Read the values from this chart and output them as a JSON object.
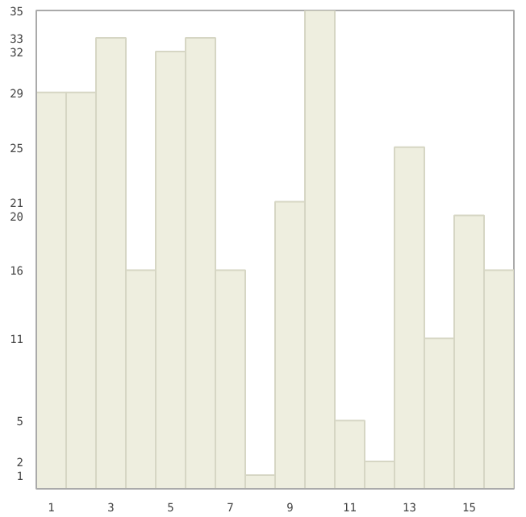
{
  "chart_data": {
    "type": "bar",
    "x": [
      1,
      2,
      3,
      4,
      5,
      6,
      7,
      8,
      9,
      10,
      11,
      12,
      13,
      14,
      15,
      16
    ],
    "values": [
      29,
      29,
      33,
      16,
      32,
      33,
      16,
      1,
      21,
      35,
      5,
      2,
      25,
      11,
      20,
      16
    ],
    "color": "#eeeedf",
    "xlim": [
      0.5,
      16.5
    ],
    "xticks": [
      1,
      3,
      5,
      7,
      9,
      11,
      13,
      15
    ],
    "ylim": [
      0,
      35
    ],
    "yticks": [
      1,
      2,
      5,
      11,
      16,
      20,
      21,
      25,
      29,
      32,
      33,
      35
    ],
    "grid": false
  }
}
